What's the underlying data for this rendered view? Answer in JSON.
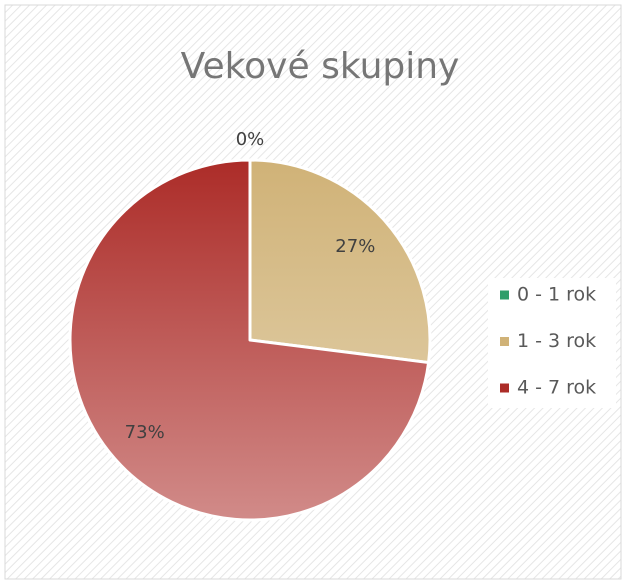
{
  "chart_data": {
    "type": "pie",
    "title": "Vekové skupiny",
    "categories": [
      "0 - 1 rok",
      "1 - 3 rok",
      "4 - 7 rok"
    ],
    "values": [
      0,
      27,
      73
    ],
    "value_labels": [
      "0%",
      "27%",
      "73%"
    ],
    "colors": [
      "#2e9e6a",
      "#d0b277",
      "#ac2c28"
    ],
    "legend": "right"
  }
}
